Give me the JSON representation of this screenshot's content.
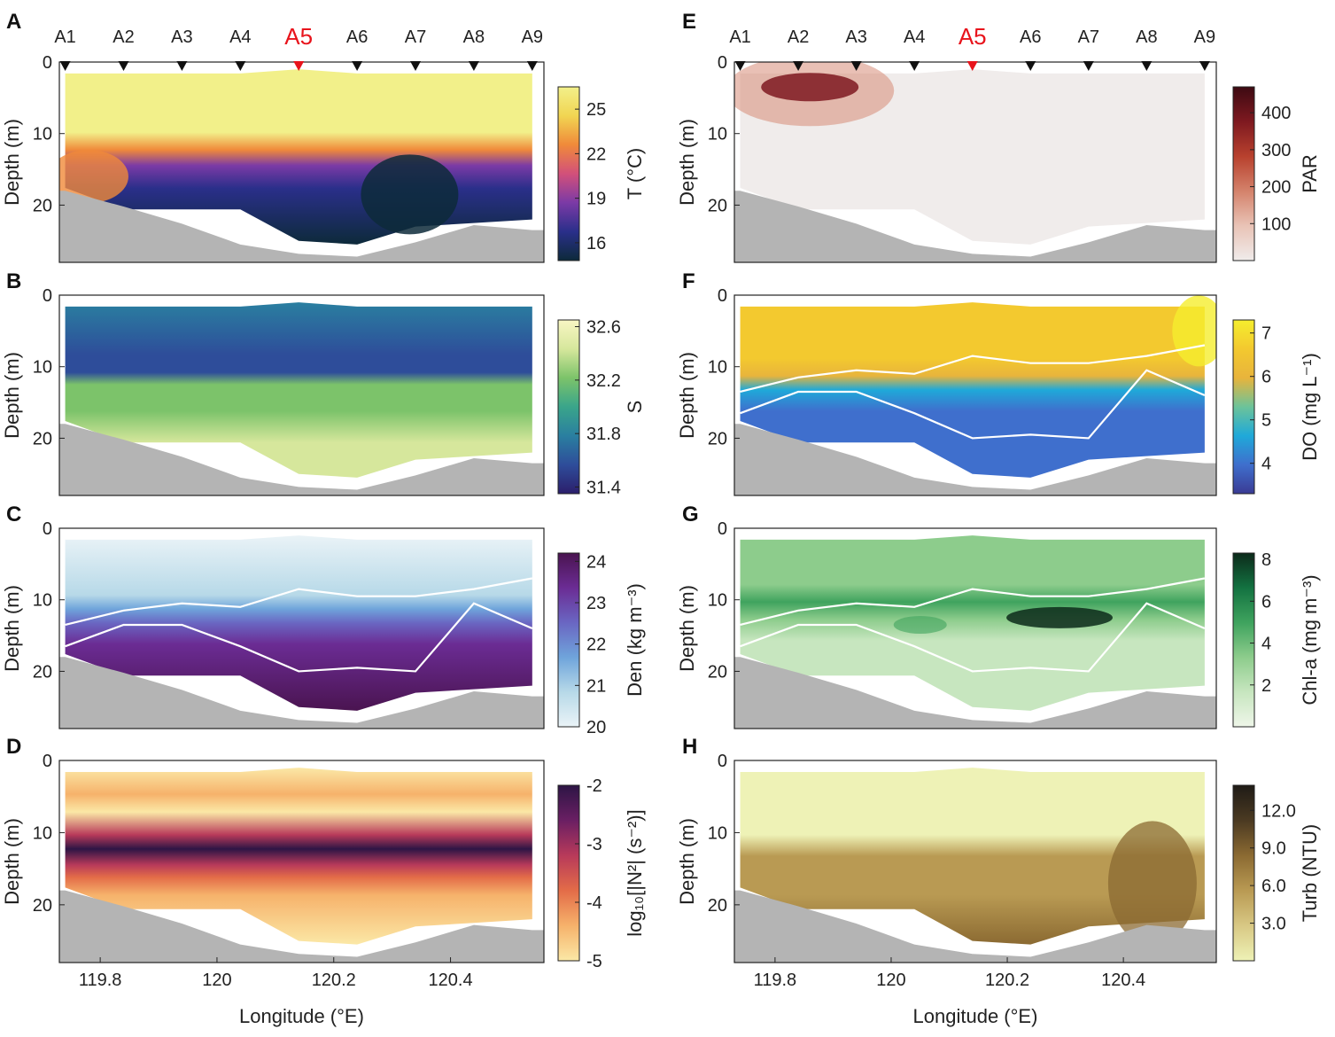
{
  "chart_data": [
    {
      "panel": "A",
      "type": "heatmap",
      "variable": "Temperature",
      "colorbar_label": "T (°C)",
      "clim": [
        14.8,
        26.5
      ],
      "colorbar_ticks": [
        "16",
        "19",
        "22",
        "25"
      ],
      "colors": [
        "#0d2a3a",
        "#2a2f8a",
        "#7b3aa6",
        "#d2507a",
        "#f08a3a",
        "#f1d552",
        "#f2f08a"
      ],
      "ylabel": "Depth (m)",
      "yticks": [
        "0",
        "10",
        "20"
      ],
      "ylim": [
        0,
        28
      ],
      "xlim": [
        119.73,
        120.56
      ],
      "xticks": [],
      "xlabel": "",
      "description_layers": [
        {
          "depth": [
            0,
            11
          ],
          "value": 26
        },
        {
          "depth": [
            11,
            26
          ],
          "value": 17
        }
      ]
    },
    {
      "panel": "B",
      "type": "heatmap",
      "variable": "Salinity",
      "colorbar_label": "S",
      "clim": [
        31.35,
        32.65
      ],
      "colorbar_ticks": [
        "31.4",
        "31.8",
        "32.2",
        "32.6"
      ],
      "colors": [
        "#2b1e6b",
        "#2e4d9a",
        "#2a7fa0",
        "#3aa58a",
        "#7cc36a",
        "#d6e79c",
        "#f9f6c4"
      ],
      "ylabel": "Depth (m)",
      "yticks": [
        "0",
        "10",
        "20"
      ],
      "ylim": [
        0,
        28
      ],
      "xlim": [
        119.73,
        120.56
      ],
      "xticks": [],
      "xlabel": ""
    },
    {
      "panel": "C",
      "type": "heatmap",
      "variable": "Density",
      "colorbar_label": "Den (kg m⁻³)",
      "clim": [
        20,
        24.2
      ],
      "colorbar_ticks": [
        "20",
        "21",
        "22",
        "23",
        "24"
      ],
      "colors": [
        "#eaf3f7",
        "#b7d9e8",
        "#6fa4db",
        "#6a66c2",
        "#6b2c94",
        "#4a1450"
      ],
      "ylabel": "Depth (m)",
      "yticks": [
        "0",
        "10",
        "20"
      ],
      "ylim": [
        0,
        28
      ],
      "xlim": [
        119.73,
        120.56
      ],
      "xticks": [],
      "xlabel": ""
    },
    {
      "panel": "D",
      "type": "heatmap",
      "variable": "log10 N2",
      "colorbar_label": "log₁₀[|N²| (s⁻²)]",
      "clim": [
        -5,
        -2
      ],
      "colorbar_ticks": [
        "-2",
        "-3",
        "-4",
        "-5"
      ],
      "colors": [
        "#fbe8a6",
        "#f6b26b",
        "#e36c48",
        "#b83a5a",
        "#6a1f63",
        "#2d1545"
      ],
      "ylabel": "Depth (m)",
      "yticks": [
        "0",
        "10",
        "20"
      ],
      "ylim": [
        0,
        28
      ],
      "xlim": [
        119.73,
        120.56
      ],
      "xticks": [
        "119.8",
        "120",
        "120.2",
        "120.4"
      ],
      "xlabel": "Longitude (°E)"
    },
    {
      "panel": "E",
      "type": "heatmap",
      "variable": "PAR",
      "colorbar_label": "PAR",
      "clim": [
        0,
        470
      ],
      "colorbar_ticks": [
        "100",
        "200",
        "300",
        "400"
      ],
      "colors": [
        "#f0eceb",
        "#e9c3b6",
        "#d4826b",
        "#b8412e",
        "#7e1920",
        "#3d0a12"
      ],
      "ylabel": "Depth (m)",
      "yticks": [
        "0",
        "10",
        "20"
      ],
      "ylim": [
        0,
        28
      ],
      "xlim": [
        119.73,
        120.56
      ],
      "xticks": [],
      "xlabel": ""
    },
    {
      "panel": "F",
      "type": "heatmap",
      "variable": "Dissolved oxygen",
      "colorbar_label": "DO (mg L⁻¹)",
      "clim": [
        3.3,
        7.3
      ],
      "colorbar_ticks": [
        "4",
        "5",
        "6",
        "7"
      ],
      "colors": [
        "#3a3b94",
        "#3f6fcd",
        "#1fa9d9",
        "#6cc39a",
        "#e8b43c",
        "#f3c92f",
        "#f5ee2e"
      ],
      "ylabel": "Depth (m)",
      "yticks": [
        "0",
        "10",
        "20"
      ],
      "ylim": [
        0,
        28
      ],
      "xlim": [
        119.73,
        120.56
      ],
      "xticks": [],
      "xlabel": ""
    },
    {
      "panel": "G",
      "type": "heatmap",
      "variable": "Chlorophyll-a",
      "colorbar_label": "Chl-a (mg m⁻³)",
      "clim": [
        0,
        8.3
      ],
      "colorbar_ticks": [
        "2",
        "4",
        "6",
        "8"
      ],
      "colors": [
        "#eef6e9",
        "#c7e6bf",
        "#8dcc8c",
        "#3fa35e",
        "#137241",
        "#0c2a1a"
      ],
      "ylabel": "Depth (m)",
      "yticks": [
        "0",
        "10",
        "20"
      ],
      "ylim": [
        0,
        28
      ],
      "xlim": [
        119.73,
        120.56
      ],
      "xticks": [],
      "xlabel": ""
    },
    {
      "panel": "H",
      "type": "heatmap",
      "variable": "Turbidity",
      "colorbar_label": "Turb (NTU)",
      "clim": [
        0,
        14
      ],
      "colorbar_ticks": [
        "3.0",
        "6.0",
        "9.0",
        "12.0"
      ],
      "colors": [
        "#eef2b6",
        "#d8c884",
        "#b99a53",
        "#8b6a32",
        "#4b3a22",
        "#1f1b16"
      ],
      "ylabel": "Depth (m)",
      "yticks": [
        "0",
        "10",
        "20"
      ],
      "ylim": [
        0,
        28
      ],
      "xlim": [
        119.73,
        120.56
      ],
      "xticks": [
        "119.8",
        "120",
        "120.2",
        "120.4"
      ],
      "xlabel": "Longitude (°E)"
    }
  ],
  "stations": {
    "names": [
      "A1",
      "A2",
      "A3",
      "A4",
      "A5",
      "A6",
      "A7",
      "A8",
      "A9"
    ],
    "longitudes": [
      119.74,
      119.84,
      119.94,
      120.04,
      120.14,
      120.24,
      120.34,
      120.44,
      120.54
    ],
    "highlight": "A5"
  },
  "isolines": {
    "upper_depths": [
      13.5,
      11.5,
      10.5,
      11,
      8.5,
      9.5,
      9.5,
      8.5,
      7
    ],
    "lower_depths": [
      16.5,
      13.5,
      13.5,
      16.5,
      20,
      19.5,
      20,
      10.5,
      14
    ]
  },
  "bathymetry": {
    "depths": [
      18,
      20.2,
      22.6,
      25.5,
      26.8,
      27.2,
      25.2,
      22.8,
      23.5
    ]
  }
}
